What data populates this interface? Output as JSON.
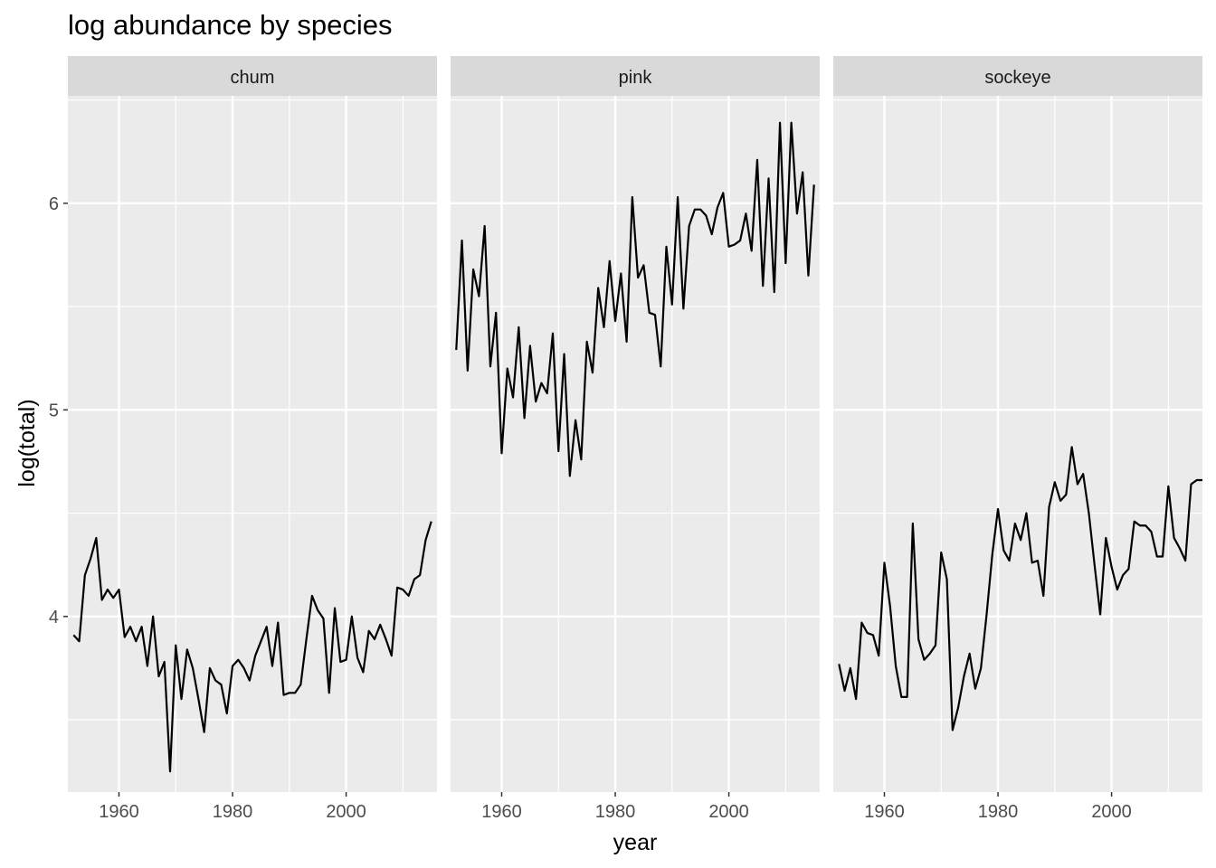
{
  "chart_data": {
    "type": "line",
    "title": "log abundance by species",
    "xlabel": "year",
    "ylabel": "log(total)",
    "xlim": [
      1951,
      2016
    ],
    "ylim": [
      3.15,
      6.52
    ],
    "x_ticks": [
      1960,
      1980,
      2000
    ],
    "y_ticks": [
      4,
      5,
      6
    ],
    "grid": true,
    "legend": "none",
    "facets": [
      {
        "name": "chum",
        "x": [
          1952,
          1953,
          1954,
          1955,
          1956,
          1957,
          1958,
          1959,
          1960,
          1961,
          1962,
          1963,
          1964,
          1965,
          1966,
          1967,
          1968,
          1969,
          1970,
          1971,
          1972,
          1973,
          1974,
          1975,
          1976,
          1977,
          1978,
          1979,
          1980,
          1981,
          1982,
          1983,
          1984,
          1985,
          1986,
          1987,
          1988,
          1989,
          1990,
          1991,
          1992,
          1993,
          1994,
          1995,
          1996,
          1997,
          1998,
          1999,
          2000,
          2001,
          2002,
          2003,
          2004,
          2005,
          2006,
          2007,
          2008,
          2009,
          2010,
          2011,
          2012,
          2013,
          2014,
          2015
        ],
        "values": [
          3.91,
          3.88,
          4.2,
          4.28,
          4.38,
          4.08,
          4.13,
          4.09,
          4.13,
          3.9,
          3.95,
          3.88,
          3.95,
          3.76,
          4.0,
          3.71,
          3.78,
          3.25,
          3.86,
          3.6,
          3.84,
          3.75,
          3.6,
          3.44,
          3.75,
          3.69,
          3.67,
          3.53,
          3.76,
          3.79,
          3.75,
          3.69,
          3.81,
          3.88,
          3.95,
          3.76,
          3.97,
          3.62,
          3.63,
          3.63,
          3.67,
          3.89,
          4.1,
          4.03,
          3.99,
          3.63,
          4.04,
          3.78,
          3.79,
          4.0,
          3.8,
          3.73,
          3.93,
          3.89,
          3.96,
          3.89,
          3.81,
          4.14,
          4.13,
          4.1,
          4.18,
          4.2,
          4.37,
          4.46
        ]
      },
      {
        "name": "pink",
        "x": [
          1952,
          1953,
          1954,
          1955,
          1956,
          1957,
          1958,
          1959,
          1960,
          1961,
          1962,
          1963,
          1964,
          1965,
          1966,
          1967,
          1968,
          1969,
          1970,
          1971,
          1972,
          1973,
          1974,
          1975,
          1976,
          1977,
          1978,
          1979,
          1980,
          1981,
          1982,
          1983,
          1984,
          1985,
          1986,
          1987,
          1988,
          1989,
          1990,
          1991,
          1992,
          1993,
          1994,
          1995,
          1996,
          1997,
          1998,
          1999,
          2000,
          2001,
          2002,
          2003,
          2004,
          2005,
          2006,
          2007,
          2008,
          2009,
          2010,
          2011,
          2012,
          2013,
          2014,
          2015
        ],
        "values": [
          5.29,
          5.82,
          5.19,
          5.68,
          5.55,
          5.89,
          5.21,
          5.47,
          4.79,
          5.2,
          5.06,
          5.4,
          4.96,
          5.31,
          5.04,
          5.13,
          5.08,
          5.37,
          4.8,
          5.27,
          4.68,
          4.95,
          4.76,
          5.33,
          5.18,
          5.59,
          5.4,
          5.72,
          5.43,
          5.66,
          5.33,
          6.03,
          5.64,
          5.7,
          5.47,
          5.46,
          5.21,
          5.79,
          5.51,
          6.03,
          5.49,
          5.89,
          5.97,
          5.97,
          5.94,
          5.85,
          5.98,
          6.05,
          5.79,
          5.8,
          5.82,
          5.95,
          5.77,
          6.21,
          5.6,
          6.12,
          5.57,
          6.39,
          5.71,
          6.39,
          5.95,
          6.15,
          5.65,
          6.09
        ]
      },
      {
        "name": "sockeye",
        "x": [
          1952,
          1953,
          1954,
          1955,
          1956,
          1957,
          1958,
          1959,
          1960,
          1961,
          1962,
          1963,
          1964,
          1965,
          1966,
          1967,
          1968,
          1969,
          1970,
          1971,
          1972,
          1973,
          1974,
          1975,
          1976,
          1977,
          1978,
          1979,
          1980,
          1981,
          1982,
          1983,
          1984,
          1985,
          1986,
          1987,
          1988,
          1989,
          1990,
          1991,
          1992,
          1993,
          1994,
          1995,
          1996,
          1997,
          1998,
          1999,
          2000,
          2001,
          2002,
          2003,
          2004,
          2005,
          2006,
          2007,
          2008,
          2009,
          2010,
          2011,
          2012,
          2013,
          2014,
          2015,
          2016
        ],
        "values": [
          3.77,
          3.64,
          3.75,
          3.6,
          3.97,
          3.92,
          3.91,
          3.81,
          4.26,
          4.05,
          3.76,
          3.61,
          3.61,
          4.45,
          3.89,
          3.79,
          3.82,
          3.86,
          4.31,
          4.18,
          3.45,
          3.56,
          3.71,
          3.82,
          3.65,
          3.75,
          4.01,
          4.3,
          4.52,
          4.32,
          4.27,
          4.45,
          4.37,
          4.5,
          4.26,
          4.27,
          4.1,
          4.53,
          4.65,
          4.56,
          4.59,
          4.82,
          4.64,
          4.69,
          4.5,
          4.25,
          4.01,
          4.38,
          4.24,
          4.13,
          4.2,
          4.23,
          4.46,
          4.44,
          4.44,
          4.41,
          4.29,
          4.29,
          4.63,
          4.38,
          4.33,
          4.27,
          4.64,
          4.66,
          4.66
        ]
      }
    ]
  }
}
